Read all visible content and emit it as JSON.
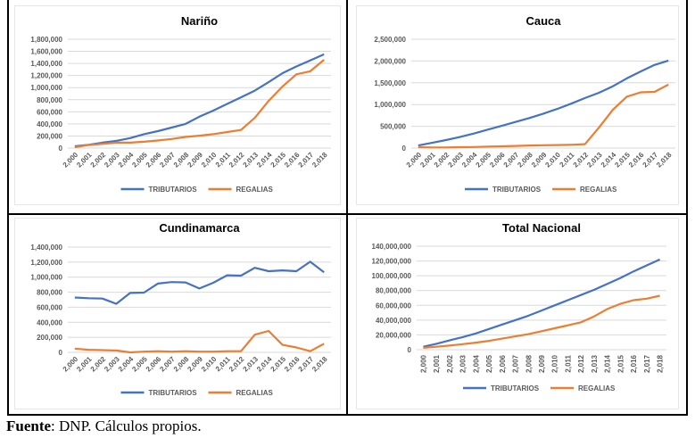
{
  "caption": {
    "label": "Fuente",
    "text": ": DNP. Cálculos propios."
  },
  "colors": {
    "tributarios": "#4472C4",
    "regalias": "#ED7D31",
    "grid": "#D9D9D9",
    "text": "#595959",
    "title": "#000000"
  },
  "chart_data": [
    {
      "type": "line",
      "title": "Nariño",
      "xlabel": "",
      "ylabel": "",
      "x": [
        "2,000",
        "2,001",
        "2,002",
        "2,003",
        "2,004",
        "2,005",
        "2,006",
        "2,007",
        "2,008",
        "2,009",
        "2,010",
        "2,011",
        "2,012",
        "2,013",
        "2,014",
        "2,015",
        "2,016",
        "2,017",
        "2,018"
      ],
      "ylim": [
        0,
        1800000
      ],
      "yticks": [
        0,
        200000,
        400000,
        600000,
        800000,
        1000000,
        1200000,
        1400000,
        1600000,
        1800000
      ],
      "ytick_labels": [
        "0",
        "200,000",
        "400,000",
        "600,000",
        "800,000",
        "1,000,000",
        "1,200,000",
        "1,400,000",
        "1,600,000",
        "1,800,000"
      ],
      "xtick_rotation": "diagonal",
      "grid": true,
      "legend": "bottom",
      "series": [
        {
          "name": "TRIBUTARIOS",
          "values": [
            30000,
            55000,
            90000,
            120000,
            165000,
            230000,
            280000,
            340000,
            400000,
            520000,
            620000,
            730000,
            840000,
            950000,
            1090000,
            1240000,
            1350000,
            1450000,
            1550000
          ]
        },
        {
          "name": "REGALIAS",
          "values": [
            15000,
            50000,
            70000,
            90000,
            90000,
            105000,
            125000,
            150000,
            185000,
            205000,
            230000,
            265000,
            300000,
            500000,
            780000,
            1020000,
            1220000,
            1270000,
            1460000
          ]
        }
      ]
    },
    {
      "type": "line",
      "title": "Cauca",
      "xlabel": "",
      "ylabel": "",
      "x": [
        "2,000",
        "2,001",
        "2,002",
        "2,003",
        "2,004",
        "2,005",
        "2,006",
        "2,007",
        "2,008",
        "2,009",
        "2,010",
        "2,011",
        "2,012",
        "2,013",
        "2,014",
        "2,015",
        "2,016",
        "2,017",
        "2,018"
      ],
      "ylim": [
        0,
        2500000
      ],
      "yticks": [
        0,
        500000,
        1000000,
        1500000,
        2000000,
        2500000
      ],
      "ytick_labels": [
        "0",
        "500,000",
        "1,000,000",
        "1,500,000",
        "2,000,000",
        "2,500,000"
      ],
      "xtick_rotation": "diagonal",
      "grid": true,
      "legend": "bottom",
      "series": [
        {
          "name": "TRIBUTARIOS",
          "values": [
            60000,
            120000,
            185000,
            255000,
            335000,
            425000,
            510000,
            600000,
            690000,
            790000,
            900000,
            1020000,
            1150000,
            1270000,
            1420000,
            1600000,
            1760000,
            1910000,
            2010000
          ]
        },
        {
          "name": "REGALIAS",
          "values": [
            20000,
            15000,
            15000,
            20000,
            25000,
            35000,
            40000,
            50000,
            60000,
            65000,
            70000,
            75000,
            90000,
            470000,
            880000,
            1180000,
            1280000,
            1290000,
            1460000
          ]
        }
      ]
    },
    {
      "type": "line",
      "title": "Cundinamarca",
      "xlabel": "",
      "ylabel": "",
      "x": [
        "2,000",
        "2,001",
        "2,002",
        "2,003",
        "2,004",
        "2,005",
        "2,006",
        "2,007",
        "2,008",
        "2,009",
        "2,010",
        "2,011",
        "2,012",
        "2,013",
        "2,014",
        "2,015",
        "2,016",
        "2,017",
        "2,018"
      ],
      "ylim": [
        0,
        1400000
      ],
      "yticks": [
        0,
        200000,
        400000,
        600000,
        800000,
        1000000,
        1200000,
        1400000
      ],
      "ytick_labels": [
        "0",
        "200,000",
        "400,000",
        "600,000",
        "800,000",
        "1,000,000",
        "1,200,000",
        "1,400,000"
      ],
      "xtick_rotation": "diagonal",
      "grid": true,
      "legend": "bottom",
      "series": [
        {
          "name": "TRIBUTARIOS",
          "values": [
            730000,
            720000,
            715000,
            645000,
            790000,
            795000,
            915000,
            935000,
            930000,
            850000,
            925000,
            1025000,
            1020000,
            1125000,
            1080000,
            1090000,
            1080000,
            1205000,
            1065000
          ]
        },
        {
          "name": "REGALIAS",
          "values": [
            50000,
            35000,
            30000,
            25000,
            0,
            10000,
            15000,
            10000,
            15000,
            10000,
            10000,
            15000,
            15000,
            235000,
            285000,
            100000,
            65000,
            15000,
            115000
          ]
        }
      ]
    },
    {
      "type": "line",
      "title": "Total Nacional",
      "xlabel": "",
      "ylabel": "",
      "x": [
        "2,000",
        "2,001",
        "2,002",
        "2,003",
        "2,004",
        "2,005",
        "2,006",
        "2,007",
        "2,008",
        "2,009",
        "2,010",
        "2,011",
        "2,012",
        "2,013",
        "2,014",
        "2,015",
        "2,016",
        "2,017",
        "2,018"
      ],
      "ylim": [
        0,
        140000000
      ],
      "yticks": [
        0,
        20000000,
        40000000,
        60000000,
        80000000,
        100000000,
        120000000,
        140000000
      ],
      "ytick_labels": [
        "0",
        "20,000,000",
        "40,000,000",
        "60,000,000",
        "80,000,000",
        "100,000,000",
        "120,000,000",
        "140,000,000"
      ],
      "xtick_rotation": "vertical",
      "grid": true,
      "legend": "bottom",
      "series": [
        {
          "name": "TRIBUTARIOS",
          "values": [
            4000000,
            8000000,
            12500000,
            17000000,
            22000000,
            28000000,
            34000000,
            40000000,
            46000000,
            53000000,
            60000000,
            67000000,
            74000000,
            81000000,
            89000000,
            97000000,
            106000000,
            114000000,
            122000000
          ]
        },
        {
          "name": "REGALIAS",
          "values": [
            2500000,
            4000000,
            5500000,
            7500000,
            9500000,
            12000000,
            15000000,
            18000000,
            21000000,
            25000000,
            29000000,
            33000000,
            37000000,
            45000000,
            55000000,
            62000000,
            67000000,
            69000000,
            73000000
          ]
        }
      ]
    }
  ]
}
